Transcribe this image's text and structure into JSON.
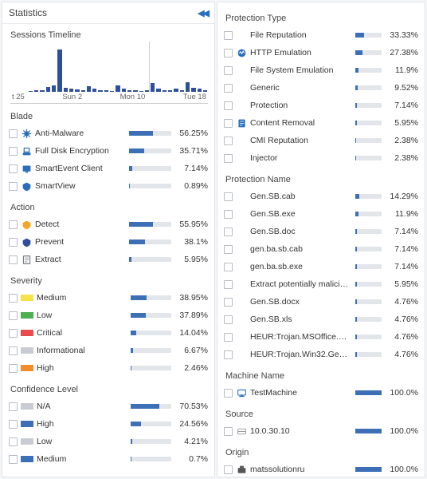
{
  "colors": {
    "bar_fill": "#3d6fb7",
    "bar_track": "#e2e5ea",
    "timeline_bar": "#2f4e9c"
  },
  "left": {
    "title": "Statistics",
    "timeline": {
      "title": "Sessions Timeline",
      "ticks": [
        "t 25",
        "Sun 2",
        "Mon 10",
        "Tue 18"
      ],
      "bars_pct": [
        0,
        0,
        0,
        2,
        4,
        3,
        10,
        14,
        88,
        8,
        6,
        5,
        4,
        12,
        6,
        4,
        3,
        2,
        14,
        6,
        4,
        3,
        2,
        4,
        18,
        6,
        4,
        3,
        6,
        4,
        20,
        8,
        6,
        4
      ],
      "tick_line_pos_pct": 70
    },
    "groups": [
      {
        "title": "Blade",
        "rows": [
          {
            "icon": "antimalware",
            "icon_color": "#2a6ebb",
            "label": "Anti-Malware",
            "pct": 56.25
          },
          {
            "icon": "fulldisk",
            "icon_color": "#2a6ebb",
            "label": "Full Disk Encryption",
            "pct": 35.71
          },
          {
            "icon": "smartevent",
            "icon_color": "#2a6ebb",
            "label": "SmartEvent Client",
            "pct": 7.14
          },
          {
            "icon": "smartview",
            "icon_color": "#2a6ebb",
            "label": "SmartView",
            "pct": 0.89
          }
        ]
      },
      {
        "title": "Action",
        "rows": [
          {
            "icon": "detect",
            "icon_color": "#f5a623",
            "label": "Detect",
            "pct": 55.95
          },
          {
            "icon": "prevent",
            "icon_color": "#2f4e9c",
            "label": "Prevent",
            "pct": 38.1
          },
          {
            "icon": "extract",
            "icon_color": "#7a7f89",
            "label": "Extract",
            "pct": 5.95
          }
        ]
      },
      {
        "title": "Severity",
        "rows": [
          {
            "swatch": "#f5e14a",
            "label": "Medium",
            "pct": 38.95
          },
          {
            "swatch": "#4caf50",
            "label": "Low",
            "pct": 37.89
          },
          {
            "swatch": "#e94b4b",
            "label": "Critical",
            "pct": 14.04
          },
          {
            "swatch": "#c8ccd2",
            "label": "Informational",
            "pct": 6.67
          },
          {
            "swatch": "#f08c2a",
            "label": "High",
            "pct": 2.46
          }
        ]
      },
      {
        "title": "Confidence Level",
        "rows": [
          {
            "swatch": "#c8ccd2",
            "label": "N/A",
            "pct": 70.53
          },
          {
            "swatch": "#3d6fb7",
            "label": "High",
            "pct": 24.56
          },
          {
            "swatch": "#c8ccd2",
            "label": "Low",
            "pct": 4.21
          },
          {
            "swatch": "#3d6fb7",
            "label": "Medium",
            "pct": 0.7
          }
        ]
      }
    ]
  },
  "right": {
    "groups": [
      {
        "title": "Protection Type",
        "rows": [
          {
            "label": "File Reputation",
            "pct": 33.33
          },
          {
            "icon": "http",
            "icon_color": "#2a6ebb",
            "label": "HTTP Emulation",
            "pct": 27.38
          },
          {
            "label": "File System Emulation",
            "pct": 11.9
          },
          {
            "label": "Generic",
            "pct": 9.52
          },
          {
            "label": "Protection",
            "pct": 7.14
          },
          {
            "icon": "content",
            "icon_color": "#2a6ebb",
            "label": "Content Removal",
            "pct": 5.95
          },
          {
            "label": "CMI Reputation",
            "pct": 2.38
          },
          {
            "label": "Injector",
            "pct": 2.38
          }
        ]
      },
      {
        "title": "Protection Name",
        "rows": [
          {
            "label": "Gen.SB.cab",
            "pct": 14.29
          },
          {
            "label": "Gen.SB.exe",
            "pct": 11.9
          },
          {
            "label": "Gen.SB.doc",
            "pct": 7.14
          },
          {
            "label": "gen.ba.sb.cab",
            "pct": 7.14
          },
          {
            "label": "gen.ba.sb.exe",
            "pct": 7.14
          },
          {
            "label": "Extract potentially malici…",
            "pct": 5.95
          },
          {
            "label": "Gen.SB.docx",
            "pct": 4.76
          },
          {
            "label": "Gen.SB.xls",
            "pct": 4.76
          },
          {
            "label": "HEUR:Trojan.MSOffice.S…",
            "pct": 4.76
          },
          {
            "label": "HEUR:Trojan.Win32.Gene…",
            "pct": 4.76
          }
        ]
      },
      {
        "title": "Machine Name",
        "rows": [
          {
            "icon": "host",
            "icon_color": "#2a6ebb",
            "label": "TestMachine",
            "pct": 100.0
          }
        ]
      },
      {
        "title": "Source",
        "rows": [
          {
            "icon": "sourceip",
            "icon_color": "#888",
            "label": "10.0.30.10",
            "pct": 100.0
          }
        ]
      },
      {
        "title": "Origin",
        "rows": [
          {
            "icon": "origin",
            "icon_color": "#555",
            "label": "matssolutionru",
            "pct": 100.0
          }
        ]
      }
    ]
  }
}
